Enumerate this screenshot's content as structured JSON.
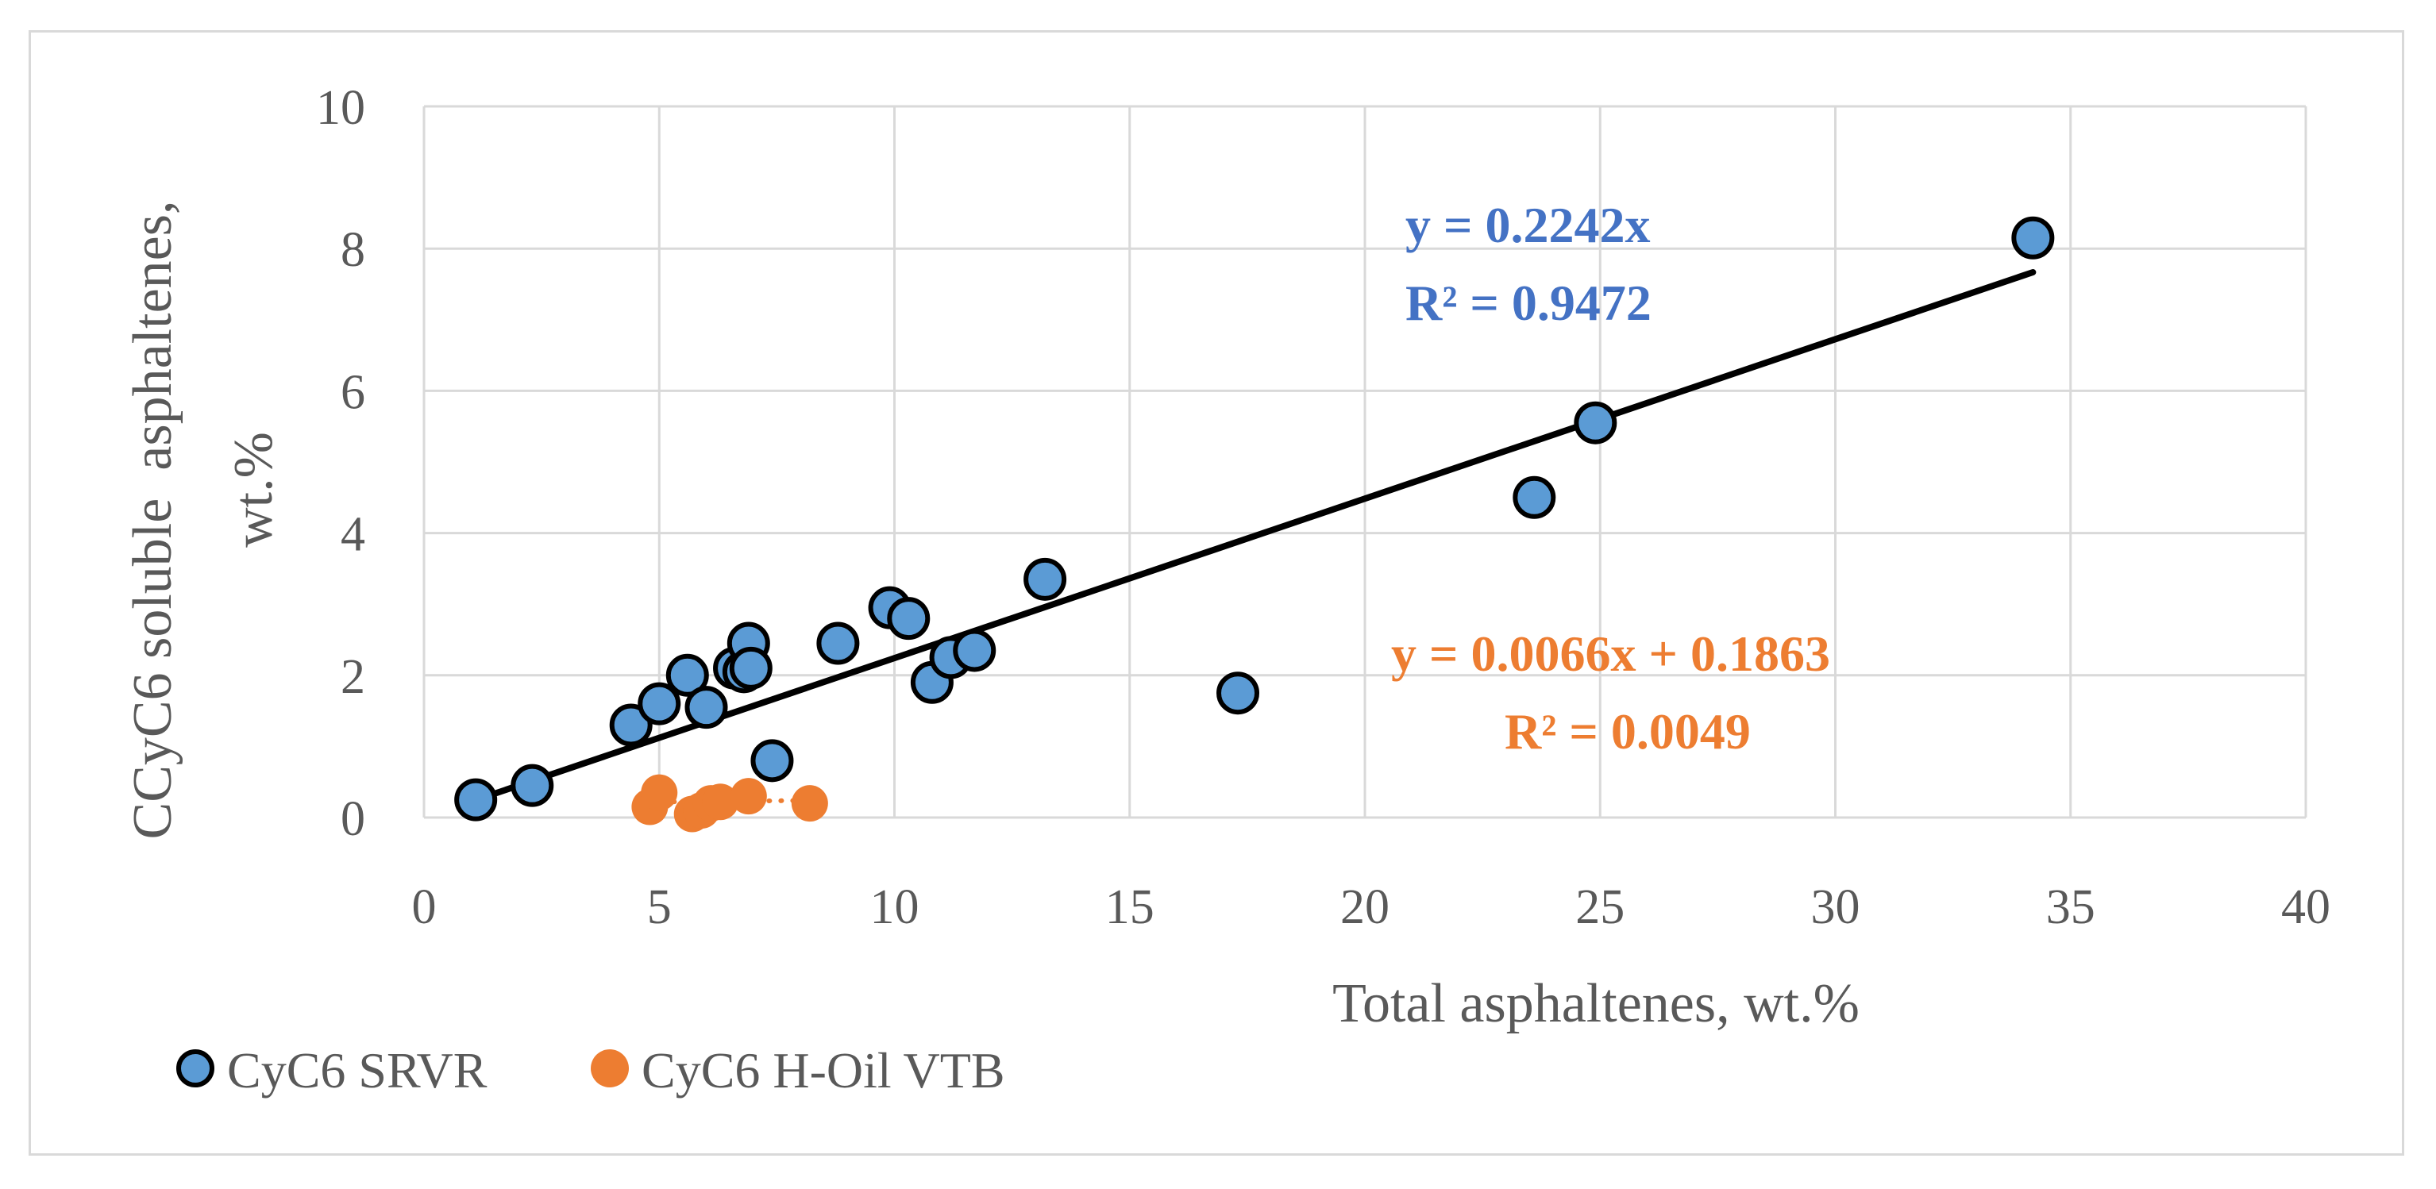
{
  "chart_data": {
    "type": "scatter",
    "xlabel": "Total asphaltenes, wt.%",
    "ylabel_lines": [
      "CCyC6 soluble  asphaltenes,",
      "wt.%"
    ],
    "xlim": [
      0,
      40
    ],
    "ylim": [
      0,
      10
    ],
    "x_ticks": [
      0,
      5,
      10,
      15,
      20,
      25,
      30,
      35,
      40
    ],
    "y_ticks": [
      0,
      2,
      4,
      6,
      8,
      10
    ],
    "grid": true,
    "legend_position": "bottom-left",
    "series": [
      {
        "name": "CyC6 SRVR",
        "color": "#5b9bd5",
        "marker_edge": "#000000",
        "points": [
          [
            1.1,
            0.25
          ],
          [
            2.3,
            0.45
          ],
          [
            4.4,
            1.3
          ],
          [
            5.0,
            1.6
          ],
          [
            5.6,
            2.0
          ],
          [
            6.0,
            1.55
          ],
          [
            6.6,
            2.1
          ],
          [
            6.8,
            2.05
          ],
          [
            6.9,
            2.45
          ],
          [
            6.95,
            2.1
          ],
          [
            7.4,
            0.8
          ],
          [
            8.8,
            2.45
          ],
          [
            9.9,
            2.95
          ],
          [
            10.3,
            2.8
          ],
          [
            10.8,
            1.9
          ],
          [
            11.2,
            2.25
          ],
          [
            11.7,
            2.35
          ],
          [
            13.2,
            3.35
          ],
          [
            17.3,
            1.75
          ],
          [
            23.6,
            4.5
          ],
          [
            24.9,
            5.55
          ],
          [
            34.2,
            8.15
          ]
        ],
        "trendline": {
          "type": "linear",
          "slope": 0.2242,
          "intercept": 0,
          "x_range": [
            1.1,
            34.2
          ],
          "color": "#000000",
          "style": "solid"
        },
        "equation": "y = 0.2242x",
        "r2": "R² = 0.9472",
        "label_color": "#4472c4"
      },
      {
        "name": "CyC6 H-Oil VTB",
        "color": "#ed7d31",
        "marker_edge": "#ed7d31",
        "points": [
          [
            4.8,
            0.15
          ],
          [
            5.0,
            0.35
          ],
          [
            5.7,
            0.05
          ],
          [
            5.9,
            0.1
          ],
          [
            6.1,
            0.2
          ],
          [
            6.3,
            0.22
          ],
          [
            6.9,
            0.3
          ],
          [
            8.2,
            0.2
          ]
        ],
        "trendline": {
          "type": "linear",
          "slope": 0.0066,
          "intercept": 0.1863,
          "x_range": [
            4.8,
            8.2
          ],
          "color": "#ed7d31",
          "style": "dotted"
        },
        "equation": "y = 0.0066x + 0.1863",
        "r2": "R² = 0.0049",
        "label_color": "#ed7d31"
      }
    ]
  }
}
